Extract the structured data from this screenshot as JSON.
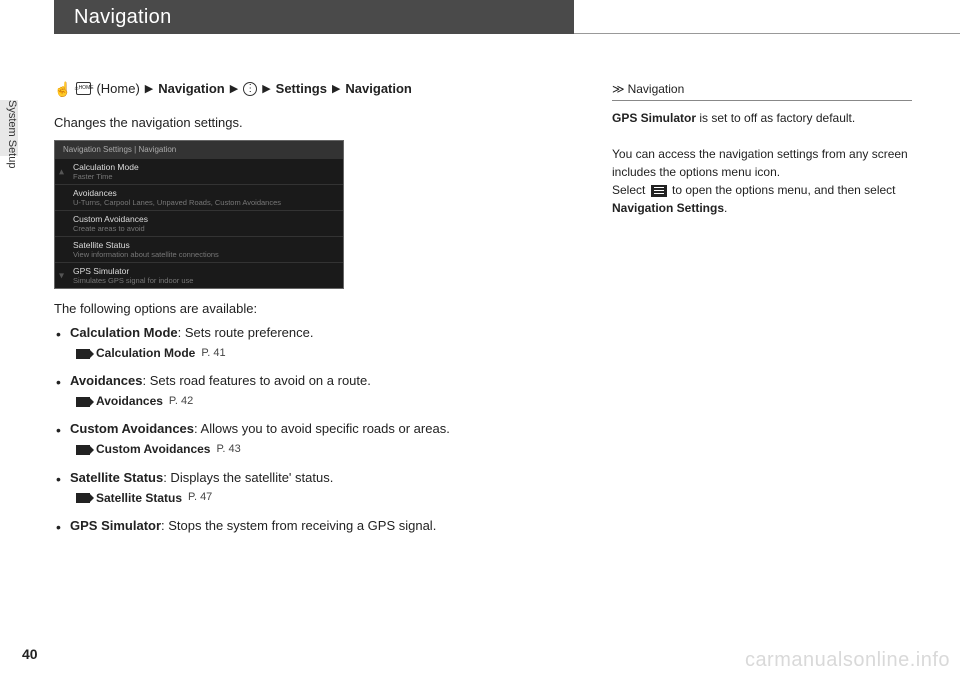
{
  "header": {
    "title": "Navigation"
  },
  "side": {
    "label": "System Setup"
  },
  "breadcrumb": {
    "home_text": "(Home)",
    "step1": "Navigation",
    "step2": "Settings",
    "step3": "Navigation"
  },
  "intro": "Changes the navigation settings.",
  "screenshot": {
    "header": "Navigation Settings  |  Navigation",
    "rows": [
      {
        "title": "Calculation Mode",
        "desc": "Faster Time"
      },
      {
        "title": "Avoidances",
        "desc": "U-Turns, Carpool Lanes, Unpaved Roads, Custom Avoidances"
      },
      {
        "title": "Custom Avoidances",
        "desc": "Create areas to avoid"
      },
      {
        "title": "Satellite Status",
        "desc": "View information about satellite connections"
      },
      {
        "title": "GPS Simulator",
        "desc": "Simulates GPS signal for indoor use"
      }
    ]
  },
  "opts_intro": "The following options are available:",
  "options": [
    {
      "name": "Calculation Mode",
      "desc": ": Sets route preference.",
      "ref": "Calculation Mode",
      "page": "P. 41"
    },
    {
      "name": "Avoidances",
      "desc": ": Sets road features to avoid on a route.",
      "ref": "Avoidances",
      "page": "P. 42"
    },
    {
      "name": "Custom Avoidances",
      "desc": ": Allows you to avoid specific roads or areas.",
      "ref": "Custom Avoidances",
      "page": "P. 43"
    },
    {
      "name": "Satellite Status",
      "desc": ": Displays the satellite' status.",
      "ref": "Satellite Status",
      "page": "P. 47"
    },
    {
      "name": "GPS Simulator",
      "desc": ": Stops the system from receiving a GPS signal.",
      "ref": null,
      "page": null
    }
  ],
  "right": {
    "heading": "Navigation",
    "p1_bold": "GPS Simulator",
    "p1_rest": " is set to off as factory default.",
    "p2a": "You can access the navigation settings from any screen includes the options menu icon.",
    "p2b_pre": "Select ",
    "p2b_post": " to open the options menu, and then select ",
    "p2b_bold": "Navigation Settings",
    "p2b_end": "."
  },
  "page_num": "40",
  "watermark": "carmanualsonline.info"
}
